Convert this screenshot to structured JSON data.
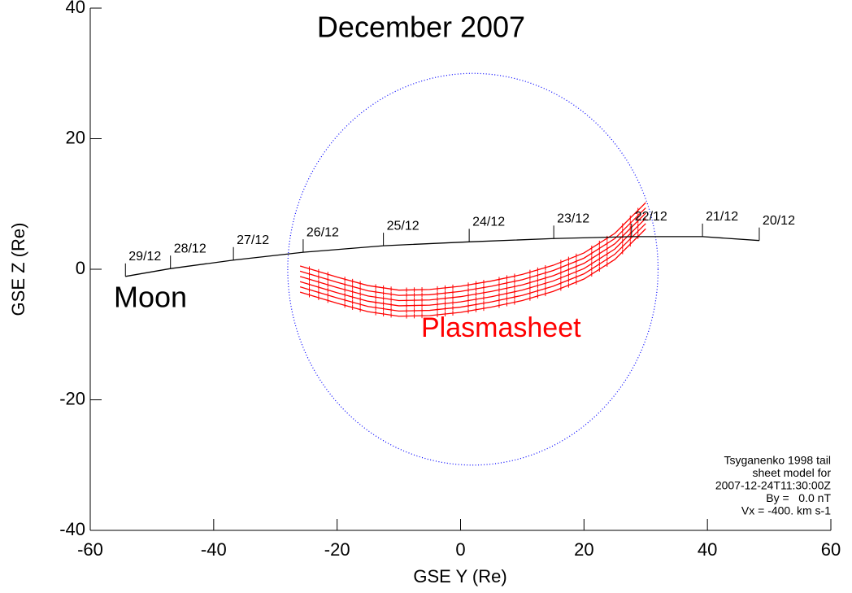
{
  "chart_data": {
    "type": "line",
    "title": "December 2007",
    "x_label": "GSE Y (Re)",
    "y_label": "GSE Z (Re)",
    "xlim": [
      -60,
      60
    ],
    "ylim": [
      -40,
      40
    ],
    "xticks": [
      -60,
      -40,
      -20,
      0,
      20,
      40,
      60
    ],
    "yticks": [
      -40,
      -20,
      0,
      20,
      40
    ],
    "moon_track": {
      "color": "#000000",
      "x": [
        -54.3,
        -47,
        -36.8,
        -25.5,
        -12.5,
        1.4,
        15.1,
        27.7,
        39.2,
        48.4
      ],
      "y": [
        -1.1,
        0.1,
        1.4,
        2.6,
        3.6,
        4.2,
        4.7,
        5.0,
        5.0,
        4.4
      ],
      "labels": [
        "29/12",
        "28/12",
        "27/12",
        "26/12",
        "25/12",
        "24/12",
        "23/12",
        "22/12",
        "21/12",
        "20/12"
      ]
    },
    "circle": {
      "x": 2,
      "y": 0,
      "r": 30,
      "color": "#0000ff"
    },
    "series": [
      {
        "color": "#ff0000",
        "x": [
          -26,
          -20,
          -15,
          -10,
          -5,
          0,
          5,
          10,
          15,
          20,
          25,
          30
        ],
        "values": [
          0.5,
          -1.2,
          -2.5,
          -3.2,
          -3.1,
          -2.6,
          -1.8,
          -0.8,
          0.6,
          2.5,
          5.5,
          10.2
        ]
      },
      {
        "color": "#ff0000",
        "x": [
          -26,
          -20,
          -15,
          -10,
          -5,
          0,
          5,
          10,
          15,
          20,
          25,
          30
        ],
        "values": [
          -0.3,
          -2.0,
          -3.3,
          -4.0,
          -3.9,
          -3.4,
          -2.6,
          -1.6,
          -0.2,
          1.7,
          4.7,
          9.4
        ]
      },
      {
        "color": "#ff0000",
        "x": [
          -26,
          -20,
          -15,
          -10,
          -5,
          0,
          5,
          10,
          15,
          20,
          25,
          30
        ],
        "values": [
          -1.1,
          -2.8,
          -4.1,
          -4.8,
          -4.7,
          -4.2,
          -3.4,
          -2.4,
          -1.0,
          0.9,
          3.9,
          8.6
        ]
      },
      {
        "color": "#ff0000",
        "x": [
          -26,
          -20,
          -15,
          -10,
          -5,
          0,
          5,
          10,
          15,
          20,
          25,
          30
        ],
        "values": [
          -1.9,
          -3.6,
          -4.9,
          -5.6,
          -5.5,
          -5.0,
          -4.2,
          -3.2,
          -1.8,
          0.1,
          3.1,
          7.8
        ]
      },
      {
        "color": "#ff0000",
        "x": [
          -26,
          -20,
          -15,
          -10,
          -5,
          0,
          5,
          10,
          15,
          20,
          25,
          30
        ],
        "values": [
          -2.7,
          -4.4,
          -5.7,
          -6.4,
          -6.3,
          -5.8,
          -5.0,
          -4.0,
          -2.6,
          -0.7,
          2.3,
          7.0
        ]
      },
      {
        "color": "#ff0000",
        "x": [
          -26,
          -20,
          -15,
          -10,
          -5,
          0,
          5,
          10,
          15,
          20,
          25,
          30
        ],
        "values": [
          -3.5,
          -5.2,
          -6.5,
          -7.2,
          -7.1,
          -6.6,
          -5.8,
          -4.8,
          -3.4,
          -1.5,
          1.5,
          6.2
        ]
      }
    ],
    "annotations": [
      "Moon",
      "Plasmasheet"
    ],
    "model_info": [
      "Tsyganenko 1998 tail",
      "sheet model for",
      "2007-12-24T11:30:00Z",
      "By =   0.0 nT",
      "Vx = -400. km s-1"
    ]
  }
}
